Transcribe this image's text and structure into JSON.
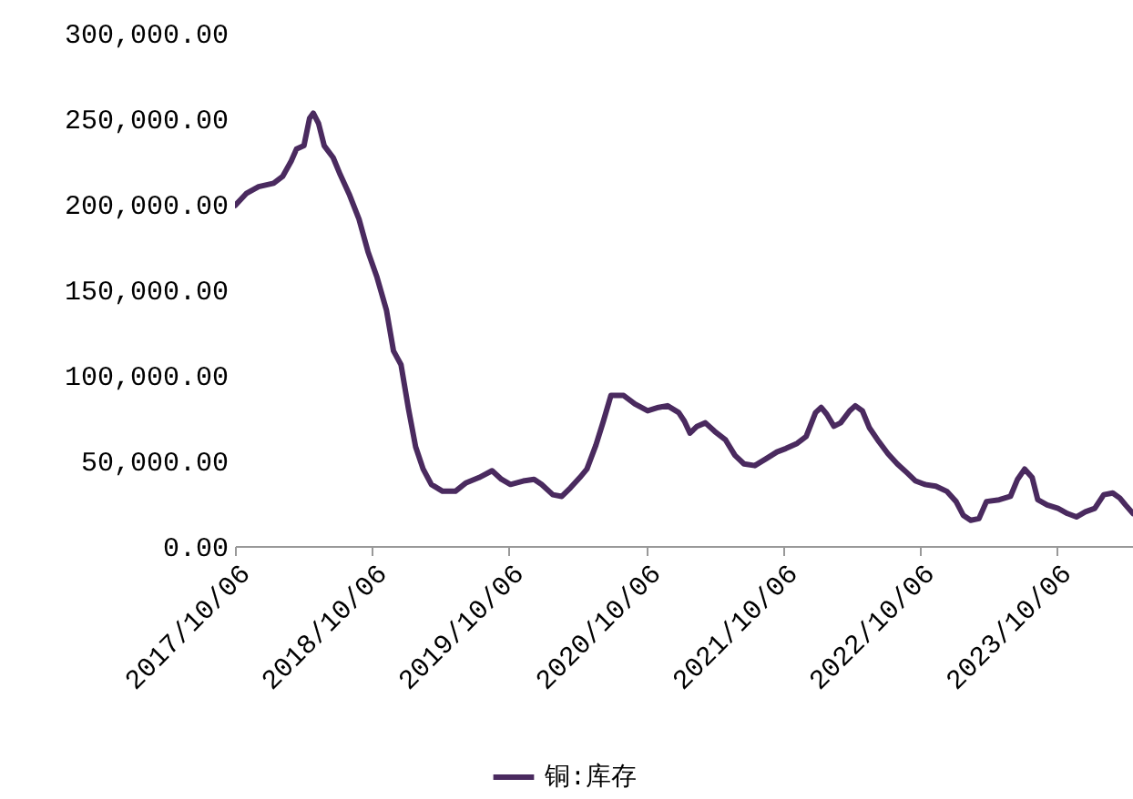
{
  "chart_data": {
    "type": "line",
    "legend": "bottom",
    "grid": false,
    "marker": "none",
    "line_style": "solid",
    "xlim": [
      "2017-10-06",
      "2024-04-28"
    ],
    "ylim": [
      0,
      300000
    ],
    "xticks": [
      {
        "value": "2017-10-06",
        "label": "2017/10/06"
      },
      {
        "value": "2018-10-06",
        "label": "2018/10/06"
      },
      {
        "value": "2019-10-06",
        "label": "2019/10/06"
      },
      {
        "value": "2020-10-06",
        "label": "2020/10/06"
      },
      {
        "value": "2021-10-06",
        "label": "2021/10/06"
      },
      {
        "value": "2022-10-06",
        "label": "2022/10/06"
      },
      {
        "value": "2023-10-06",
        "label": "2023/10/06"
      }
    ],
    "yticks": [
      {
        "value": 0,
        "label": "0.00"
      },
      {
        "value": 50000,
        "label": "50,000.00"
      },
      {
        "value": 100000,
        "label": "100,000.00"
      },
      {
        "value": 150000,
        "label": "150,000.00"
      },
      {
        "value": 200000,
        "label": "200,000.00"
      },
      {
        "value": 250000,
        "label": "250,000.00"
      },
      {
        "value": 300000,
        "label": "300,000.00"
      }
    ],
    "x": [
      "2017-10-06",
      "2017-11-05",
      "2017-12-08",
      "2018-01-17",
      "2018-02-10",
      "2018-03-05",
      "2018-03-19",
      "2018-04-08",
      "2018-04-23",
      "2018-05-03",
      "2018-05-17",
      "2018-06-01",
      "2018-06-25",
      "2018-07-14",
      "2018-08-08",
      "2018-09-02",
      "2018-09-26",
      "2018-10-20",
      "2018-11-14",
      "2018-12-03",
      "2018-12-23",
      "2019-01-12",
      "2019-01-31",
      "2019-02-20",
      "2019-03-14",
      "2019-04-13",
      "2019-05-17",
      "2019-06-15",
      "2019-07-19",
      "2019-08-23",
      "2019-09-17",
      "2019-10-11",
      "2019-11-14",
      "2019-12-13",
      "2020-01-02",
      "2020-02-01",
      "2020-02-25",
      "2020-03-19",
      "2020-04-13",
      "2020-05-02",
      "2020-05-26",
      "2020-06-15",
      "2020-07-05",
      "2020-08-08",
      "2020-09-07",
      "2020-10-11",
      "2020-11-09",
      "2020-12-03",
      "2021-01-02",
      "2021-01-17",
      "2021-02-01",
      "2021-02-20",
      "2021-03-14",
      "2021-04-08",
      "2021-05-07",
      "2021-06-01",
      "2021-06-25",
      "2021-07-24",
      "2021-08-23",
      "2021-09-21",
      "2021-10-15",
      "2021-11-14",
      "2021-12-08",
      "2022-01-02",
      "2022-01-17",
      "2022-02-01",
      "2022-02-20",
      "2022-03-10",
      "2022-04-03",
      "2022-04-18",
      "2022-05-07",
      "2022-05-26",
      "2022-06-20",
      "2022-07-14",
      "2022-08-08",
      "2022-09-02",
      "2022-09-26",
      "2022-10-20",
      "2022-11-19",
      "2022-12-18",
      "2023-01-12",
      "2023-01-31",
      "2023-02-20",
      "2023-03-14",
      "2023-04-03",
      "2023-05-07",
      "2023-06-06",
      "2023-06-25",
      "2023-07-14",
      "2023-08-03",
      "2023-08-18",
      "2023-09-12",
      "2023-10-11",
      "2023-11-05",
      "2023-11-29",
      "2023-12-23",
      "2024-01-17",
      "2024-02-10",
      "2024-03-05",
      "2024-03-24",
      "2024-04-08",
      "2024-04-28"
    ],
    "series": [
      {
        "name": "铜:库存",
        "color": "#4a2a5f",
        "values": [
          199000,
          206000,
          210000,
          212000,
          216000,
          225000,
          232000,
          234000,
          250000,
          253000,
          247000,
          234000,
          227000,
          217000,
          205000,
          191000,
          172000,
          157000,
          138000,
          114000,
          106000,
          80000,
          58000,
          45000,
          36000,
          32000,
          32000,
          37000,
          40000,
          44000,
          39000,
          36000,
          38000,
          39000,
          36000,
          30000,
          29000,
          34000,
          40000,
          45000,
          59000,
          73000,
          88000,
          88000,
          83000,
          79000,
          81000,
          82000,
          78000,
          73000,
          66000,
          70000,
          72000,
          67000,
          62000,
          53000,
          48000,
          47000,
          51000,
          55000,
          57000,
          60000,
          64000,
          78000,
          81000,
          77000,
          70000,
          72000,
          79000,
          82000,
          79000,
          69000,
          61000,
          54000,
          48000,
          43000,
          38000,
          36000,
          35000,
          32000,
          26000,
          18000,
          15000,
          16000,
          26000,
          27000,
          29000,
          39000,
          45000,
          40000,
          27000,
          24000,
          22000,
          19000,
          17000,
          20000,
          22000,
          30000,
          31000,
          28000,
          24000,
          19000
        ]
      }
    ]
  }
}
